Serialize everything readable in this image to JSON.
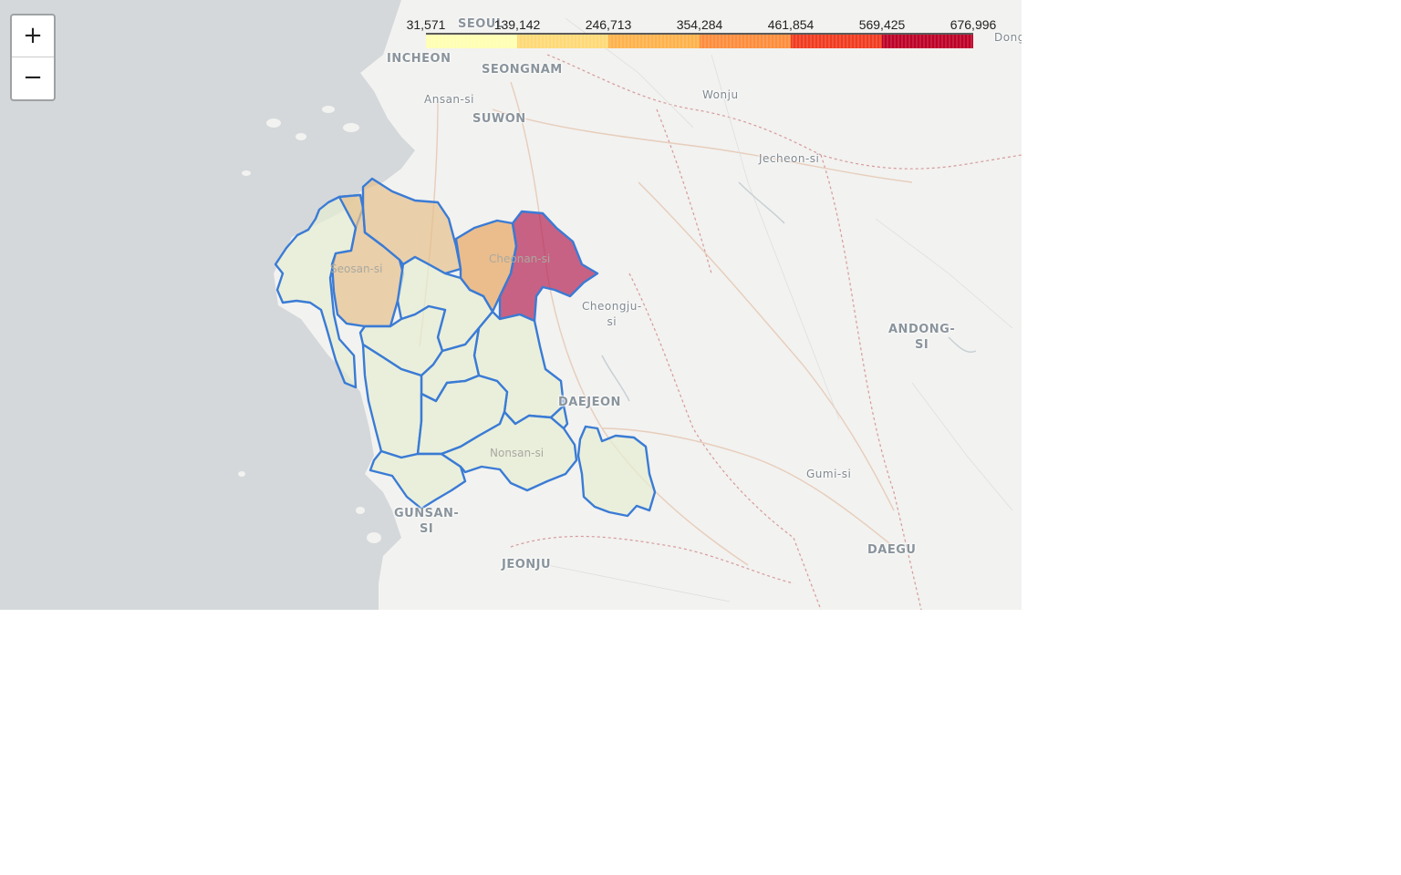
{
  "map": {
    "zoom_in_label": "+",
    "zoom_out_label": "−",
    "basemap_colors": {
      "sea": "#d4d8da",
      "land": "#f2f2f0",
      "border": "#c98a8a",
      "road": "#e6c9b4"
    },
    "place_labels": [
      {
        "id": "seoul",
        "text": "SEOUL"
      },
      {
        "id": "incheon",
        "text": "INCHEON"
      },
      {
        "id": "seongnam",
        "text": "SEONGNAM"
      },
      {
        "id": "ansan",
        "text": "Ansan-si"
      },
      {
        "id": "suwon",
        "text": "SUWON"
      },
      {
        "id": "wonju",
        "text": "Wonju"
      },
      {
        "id": "jecheon",
        "text": "Jecheon-si"
      },
      {
        "id": "cheongju",
        "text": "Cheongju-\nsi"
      },
      {
        "id": "andong",
        "text": "ANDONG-\nSI"
      },
      {
        "id": "daejeon",
        "text": "DAEJEON"
      },
      {
        "id": "gumi",
        "text": "Gumi-si"
      },
      {
        "id": "daegu",
        "text": "DAEGU"
      },
      {
        "id": "gunsan",
        "text": "GUNSAN-\nSI"
      },
      {
        "id": "jeonju",
        "text": "JEONJU"
      },
      {
        "id": "donghae",
        "text": "Dong"
      },
      {
        "id": "seosan",
        "text": "Seosan-si"
      },
      {
        "id": "cheonan",
        "text": "Cheonan-si"
      },
      {
        "id": "nonsan",
        "text": "Nonsan-si"
      }
    ],
    "choropleth": {
      "boundary_color": "#3a7bd5",
      "regions": [
        {
          "id": "cheonan-east",
          "color": "#b5295a"
        },
        {
          "id": "asan",
          "color": "#e8a865"
        },
        {
          "id": "dangjin",
          "color": "#e5c08f"
        },
        {
          "id": "seosan",
          "color": "#e5c08f"
        },
        {
          "id": "taean",
          "color": "#e6edd2"
        },
        {
          "id": "yesan",
          "color": "#e6edd2"
        },
        {
          "id": "gongju",
          "color": "#e6edd2"
        },
        {
          "id": "hongseong",
          "color": "#e6edd2"
        },
        {
          "id": "cheongyang",
          "color": "#e6edd2"
        },
        {
          "id": "boryeong",
          "color": "#e6edd2"
        },
        {
          "id": "buyeo",
          "color": "#e6edd2"
        },
        {
          "id": "seocheon",
          "color": "#e6edd2"
        },
        {
          "id": "nonsan",
          "color": "#e6edd2"
        },
        {
          "id": "geumsan",
          "color": "#e6edd2"
        },
        {
          "id": "gyeryong",
          "color": "#e6edd2"
        }
      ]
    }
  },
  "legend": {
    "ticks": [
      "31,571",
      "139,142",
      "246,713",
      "354,284",
      "461,854",
      "569,425",
      "676,996"
    ],
    "bins": [
      {
        "color": "#ffffb2"
      },
      {
        "color": "#fed976"
      },
      {
        "color": "#feb24c"
      },
      {
        "color": "#fd8d3c"
      },
      {
        "color": "#f03b20"
      },
      {
        "color": "#bd0026"
      }
    ]
  }
}
